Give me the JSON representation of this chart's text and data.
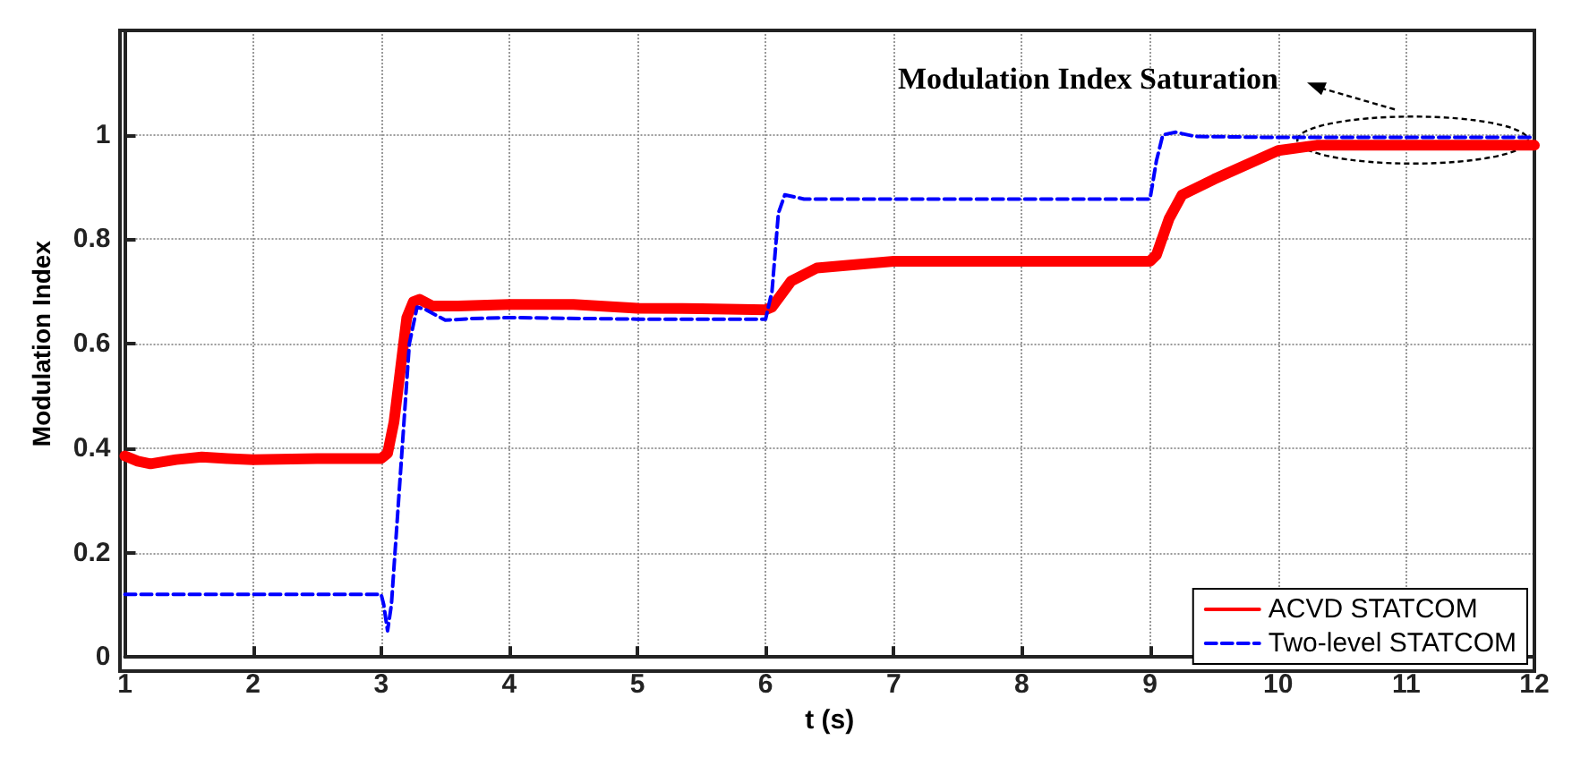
{
  "chart_data": {
    "type": "line",
    "xlabel": "t (s)",
    "ylabel": "Modulation Index",
    "xlim": [
      1,
      12
    ],
    "xticks": [
      1,
      2,
      3,
      4,
      5,
      6,
      7,
      8,
      9,
      10,
      11,
      12
    ],
    "ylim": [
      0,
      1.2
    ],
    "yticks": [
      0,
      0.2,
      0.4,
      0.6,
      0.8,
      1,
      {
        "value": 1.2,
        "label": null
      }
    ],
    "grid": true,
    "legend": "bottom right",
    "marker": "none",
    "annotations": [
      "Modulation Index Saturation"
    ],
    "series": [
      {
        "name": "ACVD STATCOM",
        "color": "#ff0000",
        "line_style": "solid",
        "x": [
          1,
          1.1,
          1.2,
          1.4,
          1.6,
          1.8,
          2,
          2.5,
          3,
          3.05,
          3.1,
          3.15,
          3.2,
          3.25,
          3.3,
          3.4,
          3.6,
          4,
          4.5,
          5,
          5.5,
          6,
          6.05,
          6.2,
          6.4,
          7,
          8,
          9,
          9.05,
          9.15,
          9.25,
          9.5,
          10,
          10.3,
          11,
          12
        ],
        "values": [
          0.385,
          0.375,
          0.37,
          0.378,
          0.383,
          0.38,
          0.378,
          0.38,
          0.38,
          0.39,
          0.45,
          0.55,
          0.65,
          0.68,
          0.685,
          0.672,
          0.672,
          0.675,
          0.675,
          0.668,
          0.667,
          0.665,
          0.67,
          0.72,
          0.745,
          0.758,
          0.758,
          0.758,
          0.77,
          0.84,
          0.885,
          0.915,
          0.97,
          0.98,
          0.98,
          0.98
        ]
      },
      {
        "name": "Two-level STATCOM",
        "color": "#0000ff",
        "line_style": "dashed",
        "x": [
          1,
          3,
          3.02,
          3.05,
          3.08,
          3.15,
          3.22,
          3.28,
          3.35,
          3.5,
          3.7,
          4,
          5,
          6,
          6.05,
          6.1,
          6.15,
          6.3,
          7,
          9,
          9.05,
          9.1,
          9.2,
          9.35,
          10,
          12
        ],
        "values": [
          0.12,
          0.12,
          0.1,
          0.05,
          0.1,
          0.35,
          0.6,
          0.67,
          0.665,
          0.645,
          0.648,
          0.65,
          0.647,
          0.647,
          0.7,
          0.85,
          0.885,
          0.877,
          0.877,
          0.877,
          0.95,
          1.0,
          1.005,
          0.997,
          0.995,
          0.995
        ]
      }
    ]
  }
}
